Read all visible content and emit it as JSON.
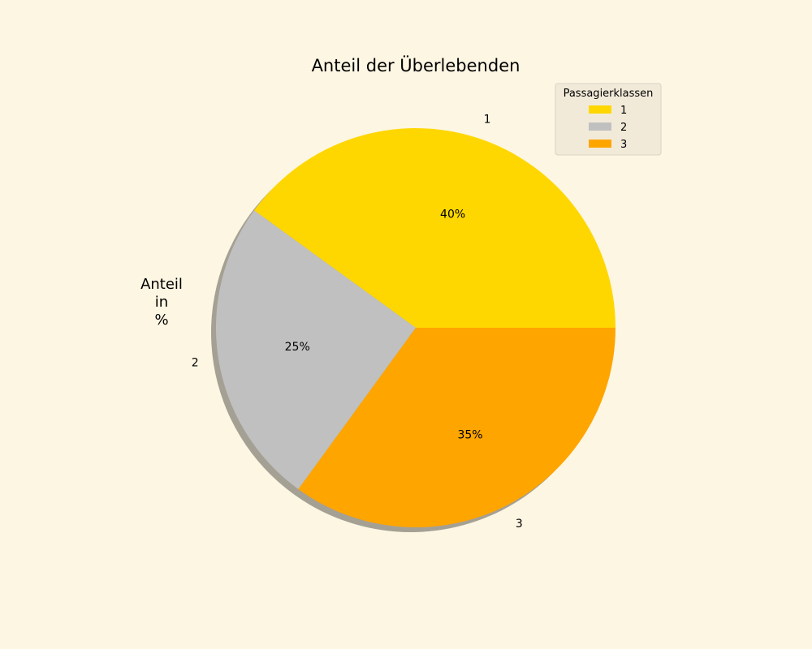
{
  "chart_data": {
    "type": "pie",
    "title": "Anteil der Überlebenden",
    "ylabel_lines": [
      "Anteil",
      "in",
      "%"
    ],
    "categories": [
      "1",
      "2",
      "3"
    ],
    "values": [
      40,
      25,
      35
    ],
    "percent_labels": [
      "40%",
      "25%",
      "35%"
    ],
    "colors": [
      "#ffd700",
      "#c0c0c0",
      "#ffa500"
    ],
    "shadow": true,
    "legend": {
      "title": "Passagierklassen",
      "placement": "top-right",
      "entries": [
        "1",
        "2",
        "3"
      ]
    }
  }
}
